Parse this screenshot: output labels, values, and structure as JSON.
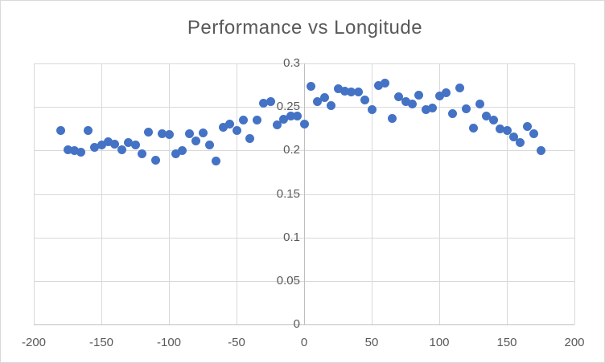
{
  "chart_data": {
    "type": "scatter",
    "title": "Performance vs Longitude",
    "xlabel": "",
    "ylabel": "",
    "xlim": [
      -200,
      200
    ],
    "ylim": [
      0,
      0.3
    ],
    "x_ticks": [
      -200,
      -150,
      -100,
      -50,
      0,
      50,
      100,
      150,
      200
    ],
    "y_ticks": [
      0,
      0.05,
      0.1,
      0.15,
      0.2,
      0.25,
      0.3
    ],
    "x_tick_labels": [
      "-200",
      "-150",
      "-100",
      "-50",
      "0",
      "50",
      "100",
      "150",
      "200"
    ],
    "y_tick_labels": [
      "0",
      "0.05",
      "0.1",
      "0.15",
      "0.2",
      "0.25",
      "0.3"
    ],
    "grid": true,
    "legend": false,
    "y_axis_at_x": 0,
    "series": [
      {
        "name": "Performance",
        "x": [
          -180,
          -175,
          -170,
          -165,
          -160,
          -155,
          -150,
          -145,
          -140,
          -135,
          -130,
          -125,
          -120,
          -115,
          -110,
          -105,
          -100,
          -95,
          -90,
          -85,
          -80,
          -75,
          -70,
          -65,
          -60,
          -55,
          -50,
          -45,
          -40,
          -35,
          -30,
          -25,
          -20,
          -15,
          -10,
          -5,
          0,
          5,
          10,
          15,
          20,
          25,
          30,
          35,
          40,
          45,
          50,
          55,
          60,
          65,
          70,
          75,
          80,
          85,
          90,
          95,
          100,
          105,
          110,
          115,
          120,
          125,
          130,
          135,
          140,
          145,
          150,
          155,
          160,
          165,
          170,
          175
        ],
        "y": [
          0.223,
          0.201,
          0.2,
          0.198,
          0.223,
          0.204,
          0.206,
          0.21,
          0.207,
          0.201,
          0.209,
          0.206,
          0.196,
          0.221,
          0.189,
          0.219,
          0.218,
          0.196,
          0.2,
          0.219,
          0.211,
          0.22,
          0.206,
          0.188,
          0.227,
          0.23,
          0.223,
          0.235,
          0.214,
          0.235,
          0.254,
          0.256,
          0.229,
          0.236,
          0.24,
          0.24,
          0.23,
          0.274,
          0.256,
          0.261,
          0.252,
          0.271,
          0.268,
          0.267,
          0.267,
          0.258,
          0.247,
          0.275,
          0.277,
          0.237,
          0.262,
          0.256,
          0.253,
          0.264,
          0.247,
          0.249,
          0.263,
          0.266,
          0.242,
          0.272,
          0.248,
          0.226,
          0.253,
          0.24,
          0.235,
          0.225,
          0.223,
          0.216,
          0.209,
          0.228,
          0.219,
          0.2
        ]
      }
    ]
  },
  "colors": {
    "marker": "#4472C4",
    "gridline": "#d9d9d9",
    "axis_line": "#bfbfbf",
    "text": "#595959",
    "background": "#ffffff",
    "border": "#d9d9d9"
  }
}
